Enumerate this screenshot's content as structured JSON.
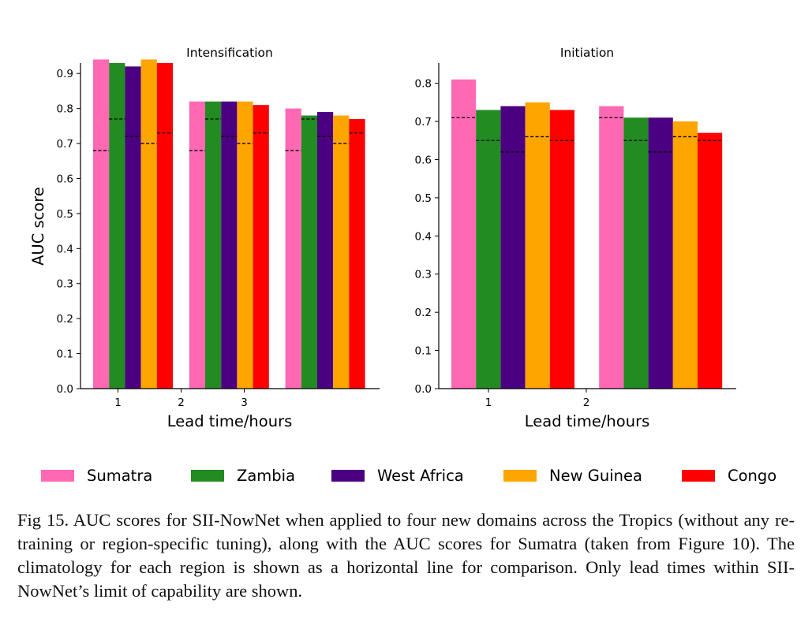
{
  "region_colors": {
    "Sumatra": "#ff69b4",
    "Zambia": "#228b22",
    "West Africa": "#4b0082",
    "New Guinea": "#ffa500",
    "Congo": "#ff0000"
  },
  "chart_data": [
    {
      "type": "bar",
      "title": "Intensification",
      "xlabel": "Lead time/hours",
      "ylabel": "AUC score",
      "ylim": [
        0,
        0.95
      ],
      "yticks": [
        "0.0",
        "0.1",
        "0.2",
        "0.3",
        "0.4",
        "0.5",
        "0.6",
        "0.7",
        "0.8",
        "0.9"
      ],
      "xtick_labels": [
        "1",
        "2",
        "3"
      ],
      "series": [
        {
          "name": "Sumatra",
          "values": [
            0.94,
            0.82,
            0.8
          ],
          "climatology": [
            0.68,
            0.68,
            0.68
          ]
        },
        {
          "name": "Zambia",
          "values": [
            0.93,
            0.82,
            0.78
          ],
          "climatology": [
            0.77,
            0.77,
            0.77
          ]
        },
        {
          "name": "West Africa",
          "values": [
            0.92,
            0.82,
            0.79
          ],
          "climatology": [
            0.72,
            0.72,
            0.72
          ]
        },
        {
          "name": "New Guinea",
          "values": [
            0.94,
            0.82,
            0.78
          ],
          "climatology": [
            0.7,
            0.7,
            0.7
          ]
        },
        {
          "name": "Congo",
          "values": [
            0.93,
            0.81,
            0.77
          ],
          "climatology": [
            0.73,
            0.73,
            0.73
          ]
        }
      ]
    },
    {
      "type": "bar",
      "title": "Initiation",
      "xlabel": "Lead time/hours",
      "ylabel": "",
      "ylim": [
        0,
        0.85
      ],
      "yticks": [
        "0.0",
        "0.1",
        "0.2",
        "0.3",
        "0.4",
        "0.5",
        "0.6",
        "0.7",
        "0.8"
      ],
      "xtick_labels": [
        "1",
        "2"
      ],
      "series": [
        {
          "name": "Sumatra",
          "values": [
            0.81,
            0.74
          ],
          "climatology": [
            0.71,
            0.71
          ]
        },
        {
          "name": "Zambia",
          "values": [
            0.73,
            0.71
          ],
          "climatology": [
            0.65,
            0.65
          ]
        },
        {
          "name": "West Africa",
          "values": [
            0.74,
            0.71
          ],
          "climatology": [
            0.62,
            0.62
          ]
        },
        {
          "name": "New Guinea",
          "values": [
            0.75,
            0.7
          ],
          "climatology": [
            0.66,
            0.66
          ]
        },
        {
          "name": "Congo",
          "values": [
            0.73,
            0.67
          ],
          "climatology": [
            0.65,
            0.65
          ]
        }
      ]
    }
  ],
  "legend": [
    "Sumatra",
    "Zambia",
    "West Africa",
    "New Guinea",
    "Congo"
  ],
  "caption": "Fig 15. AUC scores for SII-NowNet when applied to four new domains across the Tropics (without any re-training or region-specific tuning), along with the AUC scores for Sumatra (taken from Figure 10). The climatology for each region is shown as a horizontal line for comparison. Only lead times within SII-NowNet’s limit of capability are shown."
}
